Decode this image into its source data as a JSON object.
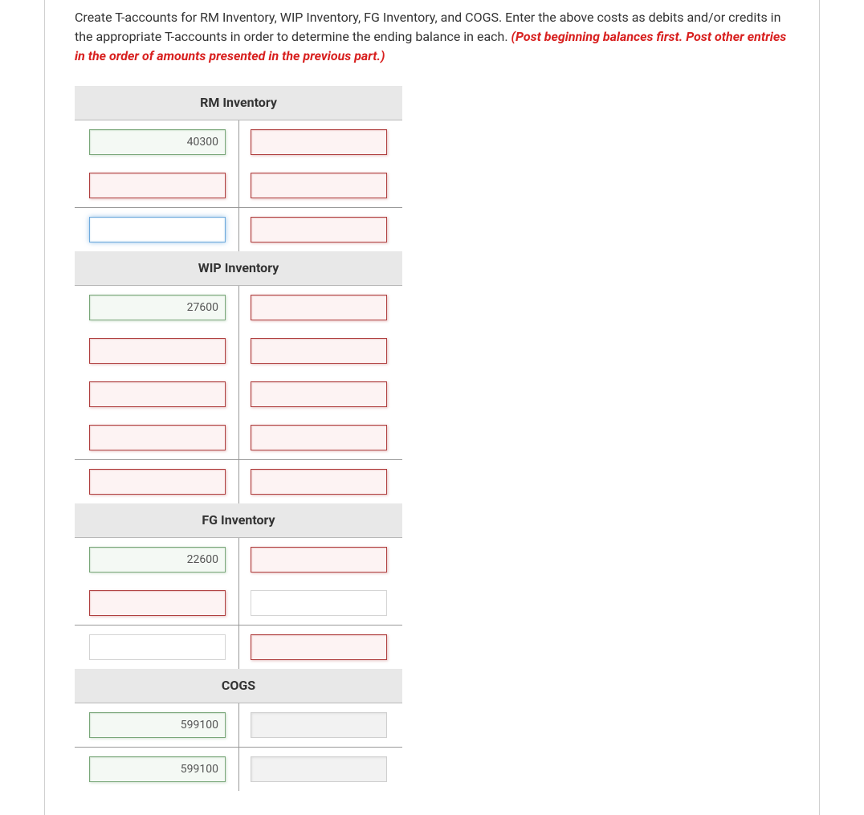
{
  "instructions": {
    "main": "Create T-accounts for RM Inventory, WIP Inventory, FG Inventory, and COGS. Enter the above costs as debits and/or credits in the appropriate T-accounts in order to determine the ending balance in each. ",
    "emphasis": "(Post beginning balances first. Post other entries in the order of amounts presented in the previous part.)"
  },
  "accounts": [
    {
      "title": "RM Inventory",
      "sections": [
        [
          {
            "debit": {
              "style": "green",
              "value": "40300"
            },
            "credit": {
              "style": "red",
              "value": ""
            }
          },
          {
            "debit": {
              "style": "red",
              "value": ""
            },
            "credit": {
              "style": "red",
              "value": ""
            }
          }
        ],
        [
          {
            "debit": {
              "style": "focus",
              "value": ""
            },
            "credit": {
              "style": "red",
              "value": ""
            }
          }
        ]
      ]
    },
    {
      "title": "WIP Inventory",
      "sections": [
        [
          {
            "debit": {
              "style": "green",
              "value": "27600"
            },
            "credit": {
              "style": "red",
              "value": ""
            }
          },
          {
            "debit": {
              "style": "red",
              "value": ""
            },
            "credit": {
              "style": "red",
              "value": ""
            }
          },
          {
            "debit": {
              "style": "red",
              "value": ""
            },
            "credit": {
              "style": "red",
              "value": ""
            }
          },
          {
            "debit": {
              "style": "red",
              "value": ""
            },
            "credit": {
              "style": "red",
              "value": ""
            }
          }
        ],
        [
          {
            "debit": {
              "style": "red",
              "value": ""
            },
            "credit": {
              "style": "red",
              "value": ""
            }
          }
        ]
      ]
    },
    {
      "title": "FG Inventory",
      "sections": [
        [
          {
            "debit": {
              "style": "green",
              "value": "22600"
            },
            "credit": {
              "style": "red",
              "value": ""
            }
          },
          {
            "debit": {
              "style": "red",
              "value": ""
            },
            "credit": {
              "style": "plain",
              "value": ""
            }
          }
        ],
        [
          {
            "debit": {
              "style": "plain",
              "value": ""
            },
            "credit": {
              "style": "red",
              "value": ""
            }
          }
        ]
      ]
    },
    {
      "title": "COGS",
      "sections": [
        [
          {
            "debit": {
              "style": "green",
              "value": "599100"
            },
            "credit": {
              "style": "gray",
              "value": ""
            }
          }
        ],
        [
          {
            "debit": {
              "style": "green",
              "value": "599100"
            },
            "credit": {
              "style": "gray",
              "value": ""
            }
          }
        ]
      ]
    }
  ]
}
